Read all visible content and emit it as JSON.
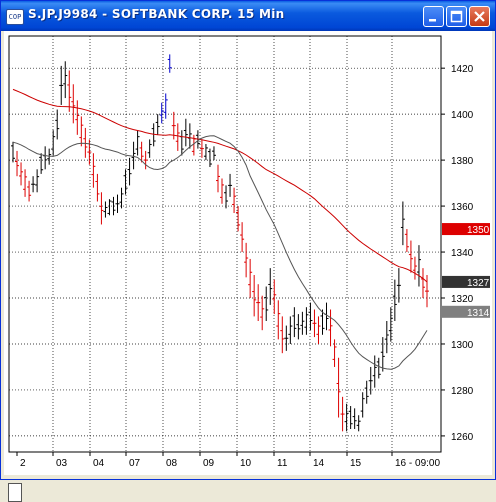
{
  "window": {
    "title": "S.JP.J9984 - SOFTBANK CORP. 15 Min",
    "icon_text": "COP",
    "controls": [
      "minimize-icon",
      "maximize-icon",
      "close-icon"
    ]
  },
  "colors": {
    "up_bar": "#000000",
    "down_bar": "#dd0000",
    "highlight_bar": "#0000cc",
    "ma_long": "#cc0000",
    "ma_short": "#555555",
    "grid": "#000000",
    "tag_ma_long": "#dd0000",
    "tag_last": "#333333",
    "tag_ma_short": "#808080"
  },
  "chart_data": {
    "type": "ohlc",
    "x_labels": [
      "2",
      "03",
      "04",
      "07",
      "08",
      "09",
      "10",
      "11",
      "14",
      "15",
      "16 - 09:00"
    ],
    "y_ticks": [
      1260,
      1280,
      1300,
      1320,
      1340,
      1360,
      1380,
      1400,
      1420
    ],
    "ylim": [
      1253,
      1434
    ],
    "grid": "dotted",
    "price_tags": [
      {
        "value": 1350,
        "label": "1350",
        "series": "ma_long"
      },
      {
        "value": 1327,
        "label": "1327",
        "series": "last"
      },
      {
        "value": 1314,
        "label": "1314",
        "series": "ma_short"
      }
    ],
    "bars": [
      [
        1388,
        1379
      ],
      [
        1384,
        1373
      ],
      [
        1379,
        1369
      ],
      [
        1376,
        1364
      ],
      [
        1371,
        1362
      ],
      [
        1373,
        1366
      ],
      [
        1376,
        1366
      ],
      [
        1383,
        1374
      ],
      [
        1386,
        1376
      ],
      [
        1385,
        1378
      ],
      [
        1393,
        1382
      ],
      [
        1402,
        1389
      ],
      [
        1421,
        1404
      ],
      [
        1423,
        1407
      ],
      [
        1419,
        1401
      ],
      [
        1413,
        1396
      ],
      [
        1406,
        1391
      ],
      [
        1399,
        1386
      ],
      [
        1394,
        1381
      ],
      [
        1389,
        1378
      ],
      [
        1383,
        1368
      ],
      [
        1374,
        1362
      ],
      [
        1366,
        1352
      ],
      [
        1362,
        1355
      ],
      [
        1363,
        1356
      ],
      [
        1364,
        1356
      ],
      [
        1365,
        1357
      ],
      [
        1368,
        1359
      ],
      [
        1376,
        1365
      ],
      [
        1381,
        1369
      ],
      [
        1388,
        1376
      ],
      [
        1393,
        1382
      ],
      [
        1388,
        1379
      ],
      [
        1384,
        1376
      ],
      [
        1389,
        1381
      ],
      [
        1396,
        1386
      ],
      [
        1400,
        1391
      ],
      [
        1405,
        1396
      ],
      [
        1409,
        1398
      ],
      [
        1426,
        1418
      ],
      [
        1401,
        1389
      ],
      [
        1396,
        1384
      ],
      [
        1393,
        1382
      ],
      [
        1398,
        1386
      ],
      [
        1396,
        1385
      ],
      [
        1391,
        1382
      ],
      [
        1393,
        1385
      ],
      [
        1389,
        1381
      ],
      [
        1387,
        1380
      ],
      [
        1385,
        1377
      ],
      [
        1386,
        1380
      ],
      [
        1378,
        1366
      ],
      [
        1372,
        1361
      ],
      [
        1369,
        1359
      ],
      [
        1374,
        1364
      ],
      [
        1368,
        1357
      ],
      [
        1360,
        1349
      ],
      [
        1353,
        1340
      ],
      [
        1344,
        1329
      ],
      [
        1337,
        1320
      ],
      [
        1330,
        1312
      ],
      [
        1326,
        1310
      ],
      [
        1321,
        1306
      ],
      [
        1325,
        1310
      ],
      [
        1333,
        1317
      ],
      [
        1328,
        1313
      ],
      [
        1319,
        1302
      ],
      [
        1312,
        1296
      ],
      [
        1308,
        1297
      ],
      [
        1312,
        1300
      ],
      [
        1316,
        1303
      ],
      [
        1313,
        1302
      ],
      [
        1314,
        1304
      ],
      [
        1316,
        1304
      ],
      [
        1318,
        1306
      ],
      [
        1315,
        1303
      ],
      [
        1312,
        1300
      ],
      [
        1315,
        1304
      ],
      [
        1318,
        1306
      ],
      [
        1315,
        1299
      ],
      [
        1302,
        1290
      ],
      [
        1294,
        1268
      ],
      [
        1277,
        1262
      ],
      [
        1274,
        1262
      ],
      [
        1273,
        1263
      ],
      [
        1272,
        1263
      ],
      [
        1269,
        1262
      ],
      [
        1279,
        1268
      ],
      [
        1284,
        1274
      ],
      [
        1290,
        1278
      ],
      [
        1295,
        1281
      ],
      [
        1294,
        1285
      ],
      [
        1303,
        1288
      ],
      [
        1310,
        1296
      ],
      [
        1316,
        1301
      ],
      [
        1328,
        1310
      ],
      [
        1333,
        1318
      ],
      [
        1362,
        1343
      ],
      [
        1350,
        1340
      ],
      [
        1345,
        1331
      ],
      [
        1338,
        1328
      ],
      [
        1343,
        1325
      ],
      [
        1333,
        1320
      ],
      [
        1330,
        1316
      ]
    ]
  }
}
